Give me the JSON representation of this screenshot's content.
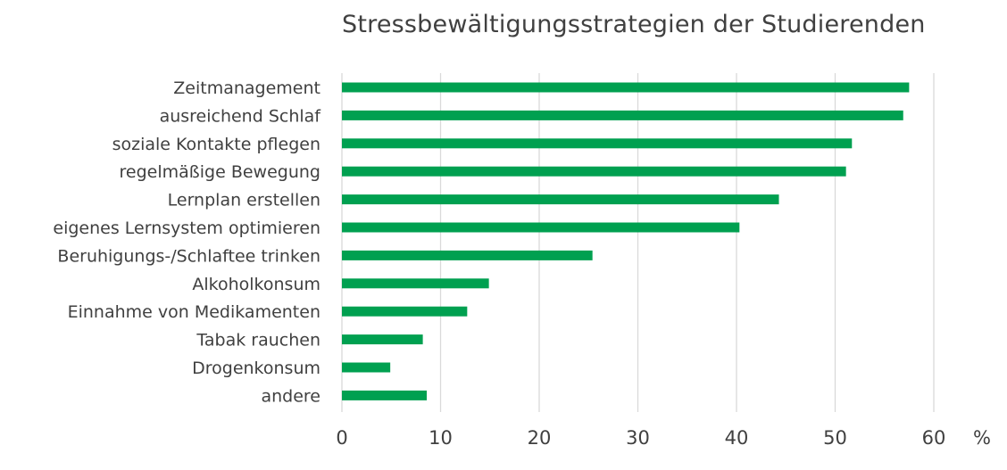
{
  "chart_data": {
    "type": "bar",
    "orientation": "horizontal",
    "title": "Stressbewältigungsstrategien der Studierenden",
    "xlabel": "",
    "ylabel": "",
    "unit_label": "%",
    "xlim": [
      0,
      60
    ],
    "ticks": [
      0,
      10,
      20,
      30,
      40,
      50,
      60
    ],
    "grid": true,
    "legend": "none",
    "bar_color": "#00a050",
    "grid_color": "#d9d9d9",
    "text_color": "#404040",
    "categories": [
      "Zeitmanagement",
      "ausreichend Schlaf",
      "soziale Kontakte pflegen",
      "regelmäßige Bewegung",
      "Lernplan erstellen",
      "eigenes Lernsystem optimieren",
      "Beruhigungs-/Schlaftee trinken",
      "Alkoholkonsum",
      "Einnahme von Medikamenten",
      "Tabak rauchen",
      "Drogenkonsum",
      "andere"
    ],
    "values": [
      57.5,
      56.9,
      51.7,
      51.1,
      44.3,
      40.3,
      25.4,
      14.9,
      12.7,
      8.2,
      4.9,
      8.6
    ]
  }
}
